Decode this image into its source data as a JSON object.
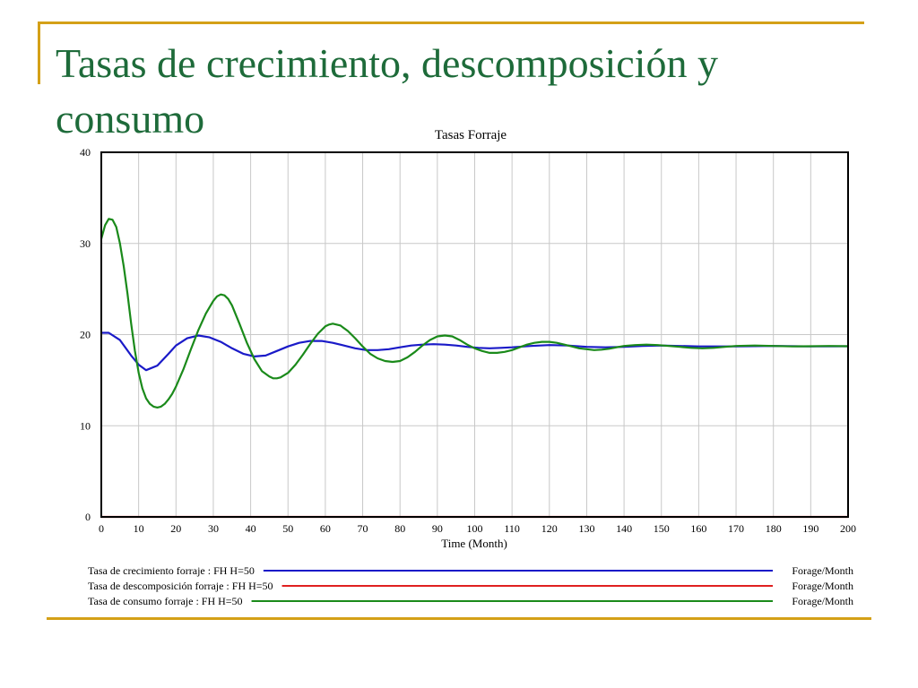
{
  "slide": {
    "title": "Tasas de crecimiento, descomposición y consumo"
  },
  "chart_data": {
    "type": "line",
    "title": "Tasas Forraje",
    "xlabel": "Time (Month)",
    "ylabel": "",
    "xlim": [
      0,
      200
    ],
    "ylim": [
      0,
      40
    ],
    "x_ticks": [
      0,
      10,
      20,
      30,
      40,
      50,
      60,
      70,
      80,
      90,
      100,
      110,
      120,
      130,
      140,
      150,
      160,
      170,
      180,
      190,
      200
    ],
    "y_ticks": [
      0,
      10,
      20,
      30,
      40
    ],
    "grid": true,
    "legend_position": "bottom",
    "series": [
      {
        "name": "Tasa de crecimiento forraje : FH H=50",
        "unit": "Forage/Month",
        "color": "#1a1ac8",
        "x": [
          0,
          2,
          5,
          8,
          10,
          12,
          15,
          18,
          20,
          23,
          26,
          29,
          32,
          35,
          38,
          41,
          44,
          47,
          50,
          53,
          56,
          59,
          62,
          65,
          68,
          71,
          74,
          77,
          80,
          83,
          86,
          89,
          92,
          95,
          98,
          101,
          104,
          107,
          110,
          115,
          120,
          125,
          130,
          135,
          140,
          145,
          150,
          160,
          170,
          180,
          190,
          200
        ],
        "values": [
          20.2,
          20.2,
          19.4,
          17.7,
          16.7,
          16.1,
          16.6,
          17.9,
          18.8,
          19.6,
          19.9,
          19.7,
          19.2,
          18.5,
          17.9,
          17.6,
          17.7,
          18.2,
          18.7,
          19.1,
          19.3,
          19.3,
          19.1,
          18.8,
          18.5,
          18.3,
          18.3,
          18.4,
          18.6,
          18.8,
          18.9,
          18.95,
          18.9,
          18.8,
          18.65,
          18.55,
          18.5,
          18.55,
          18.6,
          18.75,
          18.85,
          18.8,
          18.65,
          18.6,
          18.65,
          18.75,
          18.8,
          18.7,
          18.7,
          18.75,
          18.7,
          18.72
        ]
      },
      {
        "name": "Tasa de descomposición forraje : FH H=50",
        "unit": "Forage/Month",
        "color": "#e02020",
        "x": [
          0,
          200
        ],
        "values": [
          0,
          0
        ]
      },
      {
        "name": "Tasa de consumo forraje : FH H=50",
        "unit": "Forage/Month",
        "color": "#1a8a1a",
        "x": [
          0,
          1,
          2,
          3,
          4,
          5,
          6,
          7,
          8,
          9,
          10,
          11,
          12,
          13,
          14,
          15,
          16,
          17,
          18,
          19,
          20,
          22,
          24,
          26,
          28,
          30,
          31,
          32,
          33,
          34,
          35,
          37,
          39,
          41,
          43,
          45,
          46,
          47,
          48,
          50,
          52,
          54,
          56,
          58,
          60,
          61,
          62,
          64,
          66,
          68,
          70,
          72,
          74,
          76,
          78,
          80,
          82,
          84,
          86,
          88,
          90,
          92,
          94,
          96,
          98,
          100,
          102,
          104,
          106,
          108,
          110,
          112,
          114,
          116,
          118,
          120,
          122,
          124,
          126,
          128,
          130,
          132,
          134,
          136,
          138,
          140,
          143,
          146,
          149,
          152,
          155,
          158,
          161,
          164,
          167,
          170,
          175,
          180,
          185,
          190,
          195,
          200
        ],
        "values": [
          30.5,
          32.0,
          32.7,
          32.6,
          31.8,
          30.0,
          27.5,
          24.5,
          21.2,
          18.2,
          15.8,
          14.1,
          13.0,
          12.4,
          12.1,
          12.0,
          12.1,
          12.4,
          12.9,
          13.5,
          14.3,
          16.2,
          18.4,
          20.5,
          22.3,
          23.7,
          24.2,
          24.4,
          24.3,
          23.9,
          23.2,
          21.2,
          19.1,
          17.3,
          16.0,
          15.4,
          15.2,
          15.2,
          15.3,
          15.8,
          16.7,
          17.8,
          19.0,
          20.1,
          20.9,
          21.1,
          21.2,
          21.0,
          20.4,
          19.6,
          18.7,
          17.9,
          17.4,
          17.1,
          17.0,
          17.1,
          17.5,
          18.1,
          18.8,
          19.4,
          19.8,
          19.9,
          19.8,
          19.4,
          18.9,
          18.5,
          18.2,
          18.0,
          18.0,
          18.1,
          18.3,
          18.6,
          18.9,
          19.1,
          19.2,
          19.2,
          19.1,
          18.9,
          18.7,
          18.5,
          18.4,
          18.3,
          18.35,
          18.45,
          18.6,
          18.75,
          18.85,
          18.9,
          18.85,
          18.75,
          18.65,
          18.55,
          18.5,
          18.55,
          18.65,
          18.75,
          18.8,
          18.75,
          18.7,
          18.72,
          18.75,
          18.72
        ]
      }
    ]
  }
}
